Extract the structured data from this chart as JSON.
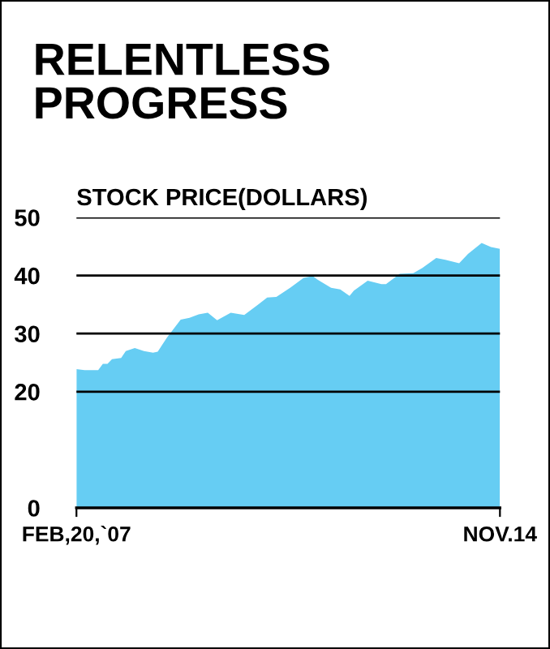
{
  "chart_data": {
    "type": "area",
    "title": "RELENTLESS\nPROGRESS",
    "ylabel": "STOCK PRICE(DOLLARS)",
    "x": [
      "2007-02-20",
      "2007-04",
      "2007-07",
      "2007-08",
      "2007-09",
      "2007-10",
      "2007-12",
      "2008-01",
      "2008-03",
      "2008-05",
      "2008-07",
      "2008-08",
      "2008-10",
      "2009-01",
      "2009-03",
      "2009-05",
      "2009-07",
      "2009-09",
      "2009-12",
      "2010-03",
      "2010-06",
      "2010-08",
      "2010-10",
      "2011-01",
      "2011-04",
      "2011-06",
      "2011-07",
      "2011-10",
      "2011-12",
      "2012-02",
      "2012-03",
      "2012-06",
      "2012-09",
      "2012-10",
      "2013-01",
      "2013-04",
      "2013-06",
      "2013-09",
      "2013-11",
      "2014-02",
      "2014-04",
      "2014-07",
      "2014-09",
      "2014-11-14"
    ],
    "series": [
      {
        "color": "#66cdf3",
        "values": [
          23.9,
          23.7,
          23.7,
          24.8,
          24.8,
          25.6,
          25.8,
          27.0,
          27.5,
          27.0,
          26.7,
          26.9,
          29.3,
          32.4,
          32.7,
          33.3,
          33.6,
          32.3,
          33.6,
          33.2,
          35.0,
          36.2,
          36.3,
          37.9,
          39.6,
          39.9,
          39.3,
          37.9,
          37.6,
          36.5,
          37.4,
          39.1,
          38.5,
          38.5,
          40.3,
          40.4,
          41.3,
          43.0,
          42.7,
          42.1,
          43.7,
          45.6,
          44.9,
          44.6
        ]
      }
    ],
    "xlim": [
      "2007-02-20",
      "2014-11-14"
    ],
    "xticks": [
      {
        "value": "2007-02-20",
        "label": "FEB,20,`07"
      },
      {
        "value": "2014-11-14",
        "label": "NOV.14"
      }
    ],
    "ylim": [
      0,
      50
    ],
    "yticks": [
      0,
      20,
      30,
      40,
      50
    ],
    "grid": "y"
  }
}
